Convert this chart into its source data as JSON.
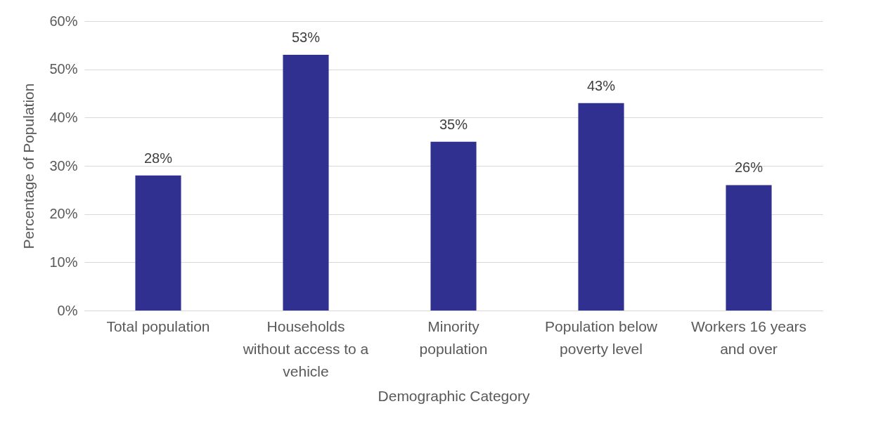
{
  "chart_data": {
    "type": "bar",
    "categories": [
      "Total population",
      "Households\nwithout access to a\nvehicle",
      "Minority\npopulation",
      "Population below\npoverty level",
      "Workers 16 years\nand over"
    ],
    "values": [
      28,
      53,
      35,
      43,
      26
    ],
    "value_labels": [
      "28%",
      "53%",
      "35%",
      "43%",
      "26%"
    ],
    "color": "#303090",
    "xlabel": "Demographic Category",
    "ylabel": "Percentage of Population",
    "ylim": [
      0,
      60
    ],
    "yticks": [
      {
        "value": 0,
        "label": "0%"
      },
      {
        "value": 10,
        "label": "10%"
      },
      {
        "value": 20,
        "label": "20%"
      },
      {
        "value": 30,
        "label": "30%"
      },
      {
        "value": 40,
        "label": "40%"
      },
      {
        "value": 50,
        "label": "50%"
      },
      {
        "value": 60,
        "label": "60%"
      }
    ],
    "grid": "y"
  }
}
